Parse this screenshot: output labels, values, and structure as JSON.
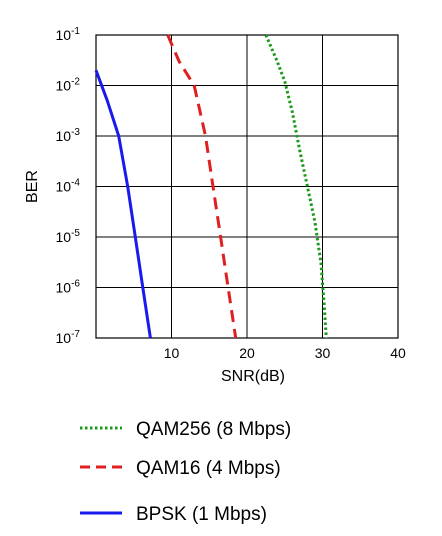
{
  "chart_data": {
    "type": "line",
    "title": "",
    "xlabel": "SNR(dB)",
    "ylabel": "BER",
    "xlim": [
      0,
      40
    ],
    "ylim_log10": [
      -7,
      -1
    ],
    "yscale": "log",
    "grid": true,
    "x_ticks": [
      10,
      20,
      30,
      40
    ],
    "x_tick_labels": [
      "10",
      "20",
      "30",
      "40"
    ],
    "y_ticks": [
      {
        "base": "10",
        "exp": "-1"
      },
      {
        "base": "10",
        "exp": "-2"
      },
      {
        "base": "10",
        "exp": "-3"
      },
      {
        "base": "10",
        "exp": "-4"
      },
      {
        "base": "10",
        "exp": "-5"
      },
      {
        "base": "10",
        "exp": "-6"
      },
      {
        "base": "10",
        "exp": "-7"
      }
    ],
    "legend_position": "bottom",
    "series": [
      {
        "name": "QAM256 (8 Mbps)",
        "color": "#1a9a1a",
        "style": "dotted",
        "points": [
          [
            22.5,
            0.1
          ],
          [
            24,
            0.03
          ],
          [
            25,
            0.012
          ],
          [
            26,
            0.003
          ],
          [
            27,
            0.0005
          ],
          [
            28,
            0.0001
          ],
          [
            29,
            2e-05
          ],
          [
            29.8,
            3e-06
          ],
          [
            30.2,
            5e-07
          ],
          [
            30.5,
            1e-07
          ]
        ]
      },
      {
        "name": "QAM16 (4 Mbps)",
        "color": "#e02020",
        "style": "dashed",
        "points": [
          [
            9.5,
            0.1
          ],
          [
            11,
            0.03
          ],
          [
            13,
            0.01
          ],
          [
            14.5,
            0.001
          ],
          [
            15.5,
            0.0001
          ],
          [
            16.5,
            1e-05
          ],
          [
            17.5,
            1e-06
          ],
          [
            18.5,
            1e-07
          ]
        ]
      },
      {
        "name": "BPSK (1 Mbps)",
        "color": "#1a1aee",
        "style": "solid",
        "points": [
          [
            0,
            0.02
          ],
          [
            1.5,
            0.005
          ],
          [
            3,
            0.001
          ],
          [
            4.2,
            0.0001
          ],
          [
            5.2,
            1e-05
          ],
          [
            6.2,
            1e-06
          ],
          [
            7.2,
            1e-07
          ]
        ]
      }
    ]
  }
}
